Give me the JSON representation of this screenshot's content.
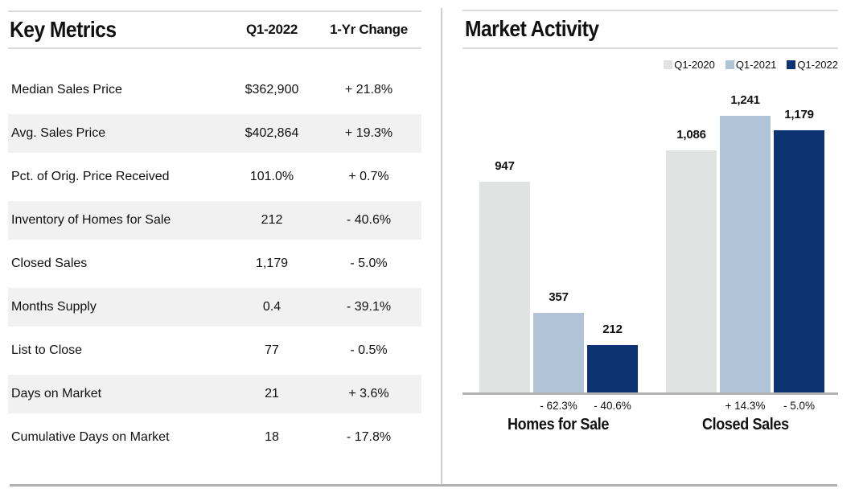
{
  "key_metrics": {
    "title": "Key Metrics",
    "columns": {
      "value": "Q1-2022",
      "change": "1-Yr Change"
    },
    "rows": [
      {
        "label": "Median Sales Price",
        "value": "$362,900",
        "change": "+ 21.8%"
      },
      {
        "label": "Avg. Sales Price",
        "value": "$402,864",
        "change": "+ 19.3%"
      },
      {
        "label": "Pct. of Orig. Price Received",
        "value": "101.0%",
        "change": "+ 0.7%"
      },
      {
        "label": "Inventory of Homes for Sale",
        "value": "212",
        "change": "- 40.6%"
      },
      {
        "label": "Closed Sales",
        "value": "1,179",
        "change": "- 5.0%"
      },
      {
        "label": "Months Supply",
        "value": "0.4",
        "change": "- 39.1%"
      },
      {
        "label": "List to Close",
        "value": "77",
        "change": "- 0.5%"
      },
      {
        "label": "Days on Market",
        "value": "21",
        "change": "+ 3.6%"
      },
      {
        "label": "Cumulative Days on Market",
        "value": "18",
        "change": "- 17.8%"
      }
    ]
  },
  "chart_data": {
    "type": "bar",
    "title": "Market Activity",
    "legend_position": "top-right",
    "grid": false,
    "ylim": [
      0,
      1300
    ],
    "legend": [
      {
        "label": "Q1-2020",
        "color": "#e0e3e1"
      },
      {
        "label": "Q1-2021",
        "color": "#b1c3d6"
      },
      {
        "label": "Q1-2022",
        "color": "#0e3373"
      }
    ],
    "groups": [
      {
        "label": "Homes for Sale",
        "bars": [
          {
            "series": "Q1-2020",
            "value": 947,
            "value_label": "947",
            "change_label": ""
          },
          {
            "series": "Q1-2021",
            "value": 357,
            "value_label": "357",
            "change_label": "- 62.3%"
          },
          {
            "series": "Q1-2022",
            "value": 212,
            "value_label": "212",
            "change_label": "- 40.6%"
          }
        ]
      },
      {
        "label": "Closed Sales",
        "bars": [
          {
            "series": "Q1-2020",
            "value": 1086,
            "value_label": "1,086",
            "change_label": ""
          },
          {
            "series": "Q1-2021",
            "value": 1241,
            "value_label": "1,241",
            "change_label": "+ 14.3%"
          },
          {
            "series": "Q1-2022",
            "value": 1179,
            "value_label": "1,179",
            "change_label": "- 5.0%"
          }
        ]
      }
    ]
  }
}
